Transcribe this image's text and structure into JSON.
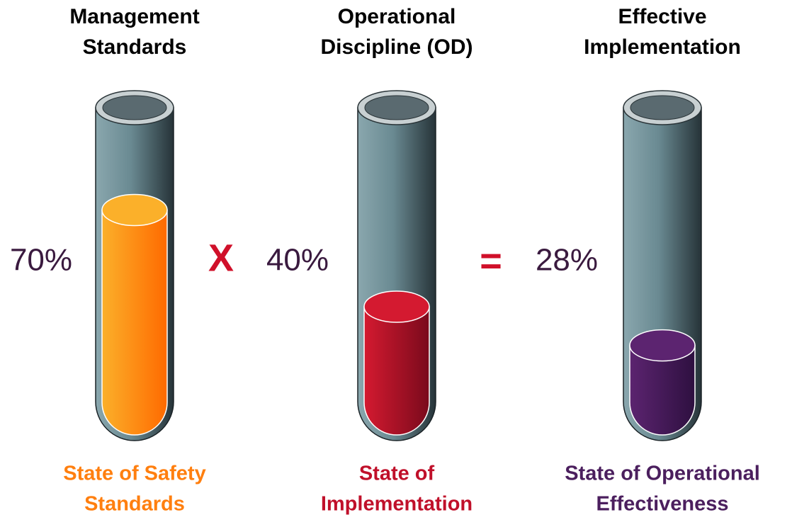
{
  "tubes": [
    {
      "title": [
        "Management",
        "Standards"
      ],
      "value": 70,
      "value_label": "70%",
      "caption": [
        "State of Safety",
        "Standards"
      ],
      "color": "#ff7f0f",
      "color_light": "#fbb02a",
      "color_dark": "#ff6a00"
    },
    {
      "title": [
        "Operational",
        "Discipline (OD)"
      ],
      "value": 40,
      "value_label": "40%",
      "caption": [
        "State of",
        "Implementation"
      ],
      "color": "#c0102a",
      "color_light": "#d41a30",
      "color_dark": "#7a0a1c"
    },
    {
      "title": [
        "Effective",
        "Implementation"
      ],
      "value": 28,
      "value_label": "28%",
      "caption": [
        "State of Operational",
        "Effectiveness"
      ],
      "color": "#4b1f5e",
      "color_light": "#5c2470",
      "color_dark": "#2e1040"
    }
  ],
  "operators": [
    "X",
    "="
  ]
}
